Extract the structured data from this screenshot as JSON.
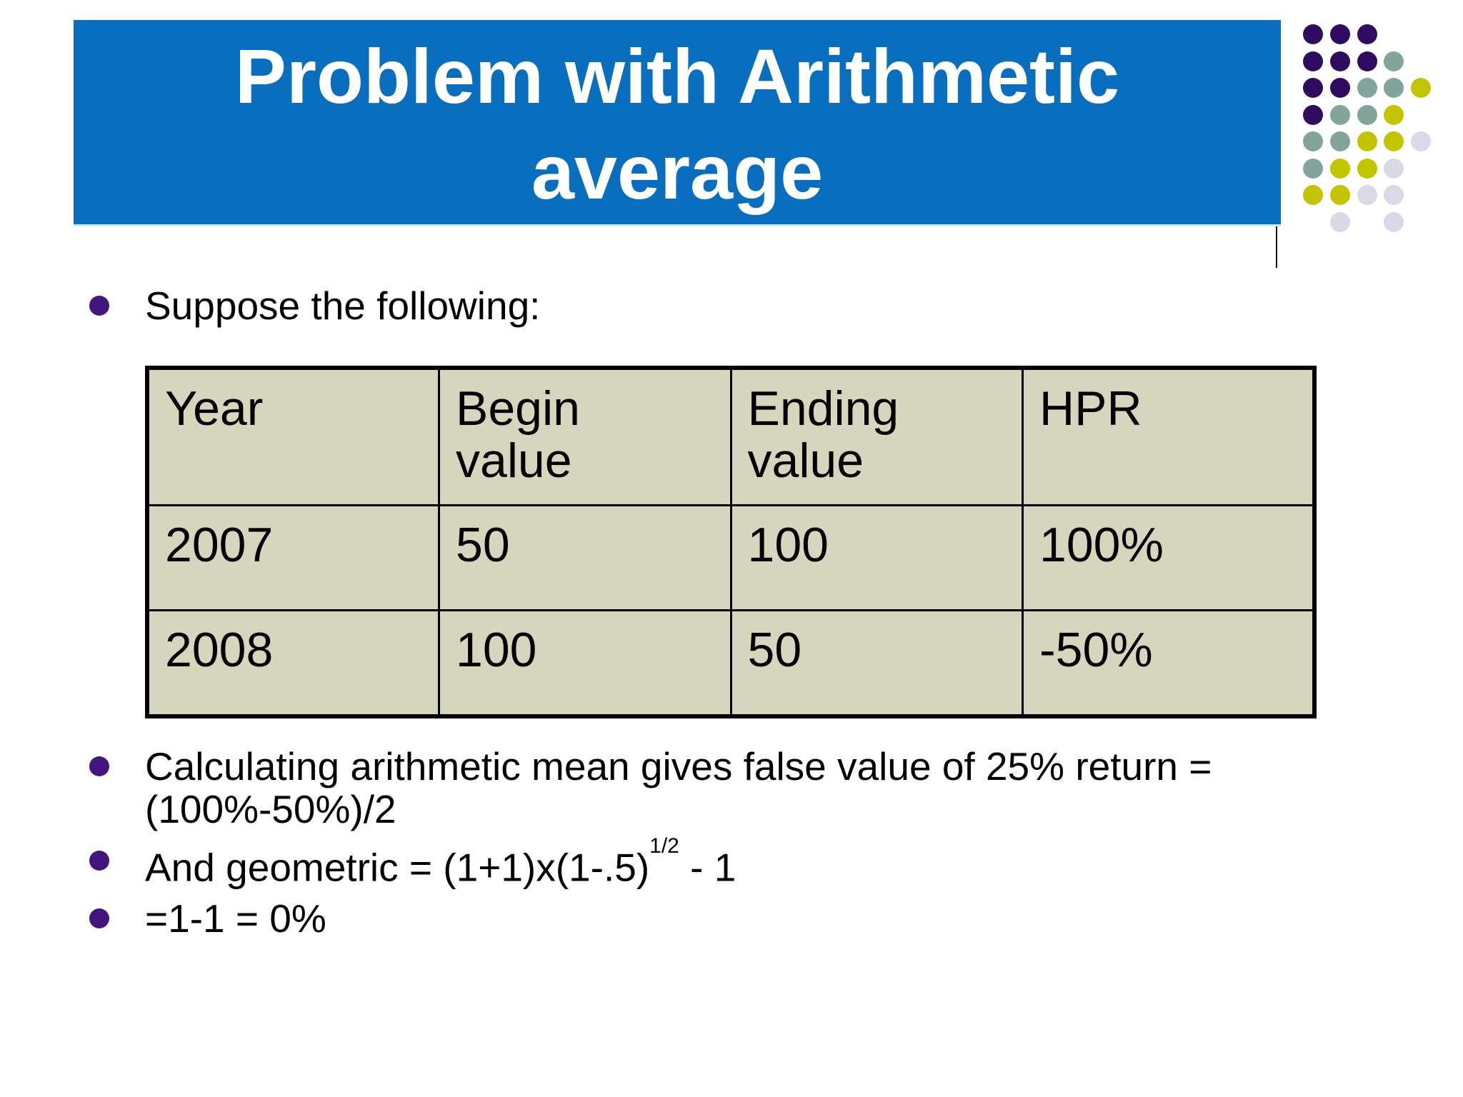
{
  "slide": {
    "title": {
      "line1": "Problem with Arithmetic",
      "line2": "average"
    },
    "intro_bullet": "Suppose the following:",
    "table": {
      "headers": [
        "Year",
        "Begin value",
        "Ending value",
        "HPR"
      ],
      "rows": [
        [
          "2007",
          "50",
          "100",
          "100%"
        ],
        [
          "2008",
          "100",
          "50",
          "-50%"
        ]
      ]
    },
    "bullets": {
      "b1_line1": "Calculating arithmetic mean gives false value of 25% return =",
      "b1_line2": "(100%-50%)/2",
      "b2_pre": "And geometric = (1+1)x(1-.5)",
      "b2_sup": "1/2",
      "b2_post": " - 1",
      "b3": "=1-1 = 0%"
    },
    "colors": {
      "banner_blue": "#0a6ebe",
      "title_text": "#ffffff",
      "body_text": "#000000",
      "bullet_dot": "#44157e",
      "table_cell_bg": "#d6d6be",
      "table_border": "#000000",
      "deco_purple": "#2f0c60",
      "deco_sage": "#82a49c",
      "deco_yellow": "#c2c400",
      "deco_lavender": "#d9d9e8"
    },
    "decoration": {
      "dot_grid": [
        [
          "p",
          "p",
          "p",
          "",
          ""
        ],
        [
          "p",
          "p",
          "p",
          "s",
          ""
        ],
        [
          "p",
          "p",
          "s",
          "s",
          "y"
        ],
        [
          "p",
          "s",
          "s",
          "y",
          ""
        ],
        [
          "s",
          "s",
          "y",
          "y",
          "l"
        ],
        [
          "s",
          "y",
          "y",
          "l",
          ""
        ],
        [
          "y",
          "y",
          "l",
          "l",
          ""
        ],
        [
          "",
          "l",
          "",
          "l",
          ""
        ]
      ]
    }
  }
}
